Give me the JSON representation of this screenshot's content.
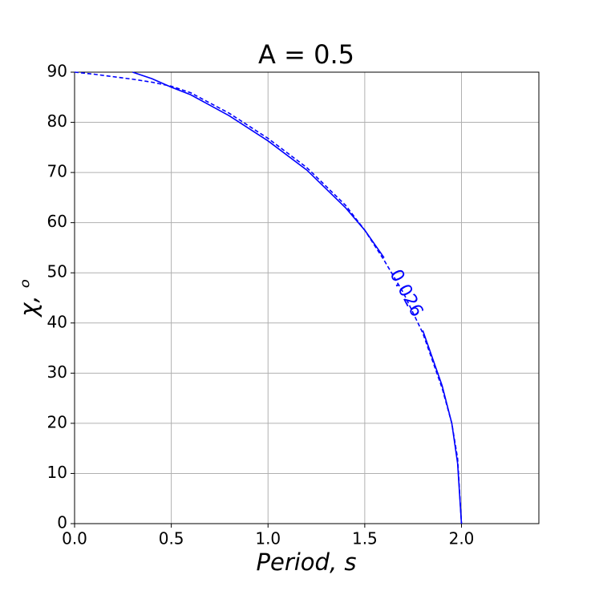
{
  "chart_data": {
    "type": "line",
    "title": "A = 0.5",
    "xlabel": "Period,  s",
    "ylabel": "χ,  ᵒ",
    "x": [
      0,
      0.1,
      0.2,
      0.3,
      0.4,
      0.5,
      0.6,
      0.8,
      1.0,
      1.2,
      1.4,
      1.5,
      1.6,
      1.7,
      1.8,
      1.9,
      1.95,
      1.98,
      2.0
    ],
    "series": [
      {
        "color": "#0000ff",
        "linestyle": "solid",
        "values": [
          null,
          null,
          null,
          90,
          88.7,
          87,
          85.5,
          81.3,
          76.3,
          70.5,
          63,
          58.5,
          53,
          null,
          38.5,
          27.5,
          20,
          12,
          0
        ]
      },
      {
        "color": "#0000ff",
        "linestyle": "dashed",
        "values": [
          90,
          89.6,
          89.1,
          88.6,
          88,
          87.2,
          85.9,
          81.8,
          76.8,
          71,
          63.5,
          58.5,
          52.5,
          46,
          38,
          27,
          20,
          13,
          0
        ]
      }
    ],
    "annotation": "0.026",
    "xlim": [
      0,
      2.4
    ],
    "ylim": [
      0,
      90
    ],
    "xticks": [
      {
        "value": 0,
        "label": "0.0"
      },
      {
        "value": 0.5,
        "label": "0.5"
      },
      {
        "value": 1,
        "label": "1.0"
      },
      {
        "value": 1.5,
        "label": "1.5"
      },
      {
        "value": 2,
        "label": "2.0"
      }
    ],
    "yticks": [
      0,
      10,
      20,
      30,
      40,
      50,
      60,
      70,
      80,
      90
    ],
    "grid": true
  }
}
